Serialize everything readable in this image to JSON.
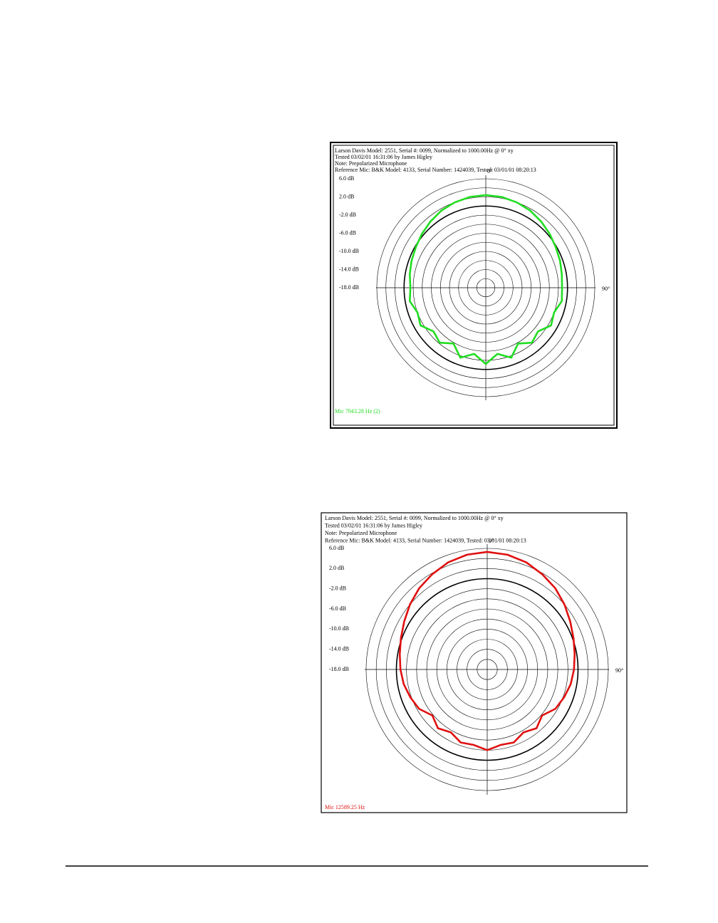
{
  "chart_data": [
    {
      "type": "polar",
      "header": [
        "Larson Davis Model: 2551, Serial #: 0099, Normalized to 1000.00Hz @ 0° xy",
        "Tested 03/02/01 16:31:06 by James Higley",
        "Note: Prepolarized Microphone",
        "Reference Mic: B&K Model: 4133, Serial Number: 1424039, Tested: 03/01/01 08:20:13"
      ],
      "rlim": [
        -18,
        6
      ],
      "rticks": [
        {
          "value": 6,
          "label": "6.0 dB"
        },
        {
          "value": 2,
          "label": "2.0 dB"
        },
        {
          "value": -2,
          "label": "-2.0 dB"
        },
        {
          "value": -6,
          "label": "-6.0 dB"
        },
        {
          "value": -10,
          "label": "-10.0 dB"
        },
        {
          "value": -14,
          "label": "-14.0 dB"
        },
        {
          "value": -18,
          "label": "-18.0 dB"
        }
      ],
      "rings": [
        -16,
        -14,
        -12,
        -10,
        -8,
        -6,
        -4,
        -2,
        0,
        2,
        4,
        6
      ],
      "reference_ring": 0,
      "angle_ticks": [
        {
          "value": 0,
          "label": "0°"
        },
        {
          "value": 90,
          "label": "90°"
        }
      ],
      "theta": [
        0,
        10,
        20,
        30,
        40,
        50,
        60,
        70,
        80,
        90,
        100,
        110,
        120,
        130,
        140,
        150,
        160,
        170,
        180,
        190,
        200,
        210,
        220,
        230,
        240,
        250,
        260,
        270,
        280,
        290,
        300,
        310,
        320,
        330,
        340,
        350
      ],
      "series": [
        {
          "name": "Mic 7943.28 Hz (2)",
          "color": "#22dd22",
          "values": [
            2.4,
            2.3,
            2.0,
            1.6,
            1.0,
            0.4,
            -0.2,
            -0.6,
            -1.0,
            -1.2,
            -1.0,
            -2.0,
            -1.4,
            -3.0,
            -2.2,
            -3.8,
            -1.6,
            -3.2,
            -1.2,
            -3.2,
            -1.6,
            -3.8,
            -2.2,
            -3.0,
            -1.4,
            -2.0,
            -1.0,
            -1.4,
            -1.0,
            -0.6,
            -0.2,
            0.4,
            1.0,
            1.6,
            2.0,
            2.3
          ]
        }
      ]
    },
    {
      "type": "polar",
      "header": [
        "Larson Davis Model: 2551, Serial #: 0099, Normalized to 1000.00Hz @ 0° xy",
        "Tested 03/02/01 16:31:06 by James Higley",
        "Note: Prepolarized Microphone",
        "Reference Mic: B&K Model: 4133, Serial Number: 1424039, Tested: 03/01/01 08:20:13"
      ],
      "rlim": [
        -18,
        6
      ],
      "rticks": [
        {
          "value": 6,
          "label": "6.0 dB"
        },
        {
          "value": 2,
          "label": "2.0 dB"
        },
        {
          "value": -2,
          "label": "-2.0 dB"
        },
        {
          "value": -6,
          "label": "-6.0 dB"
        },
        {
          "value": -10,
          "label": "-10.0 dB"
        },
        {
          "value": -14,
          "label": "-14.0 dB"
        },
        {
          "value": -18,
          "label": "-18.0 dB"
        }
      ],
      "rings": [
        -16,
        -14,
        -12,
        -10,
        -8,
        -6,
        -4,
        -2,
        0,
        2,
        4,
        6
      ],
      "reference_ring": 0,
      "angle_ticks": [
        {
          "value": 0,
          "label": "0°"
        },
        {
          "value": 90,
          "label": "90°"
        }
      ],
      "theta": [
        0,
        10,
        20,
        30,
        40,
        50,
        60,
        70,
        80,
        90,
        100,
        110,
        120,
        130,
        140,
        150,
        160,
        170,
        180,
        190,
        200,
        210,
        220,
        230,
        240,
        250,
        260,
        270,
        280,
        290,
        300,
        310,
        320,
        330,
        340,
        350
      ],
      "series": [
        {
          "name": "Mic 12589.25 Hz",
          "color": "#e01010",
          "values": [
            5.3,
            5.1,
            4.6,
            3.8,
            3.0,
            2.0,
            1.0,
            0.2,
            -0.4,
            -0.8,
            -1.2,
            -1.8,
            -2.4,
            -3.8,
            -2.8,
            -3.6,
            -2.6,
            -2.8,
            -2.0,
            -2.8,
            -2.6,
            -3.6,
            -2.8,
            -3.8,
            -2.4,
            -1.8,
            -1.2,
            -0.8,
            -0.4,
            0.2,
            1.0,
            2.0,
            3.0,
            3.8,
            4.6,
            5.1
          ]
        }
      ]
    }
  ]
}
